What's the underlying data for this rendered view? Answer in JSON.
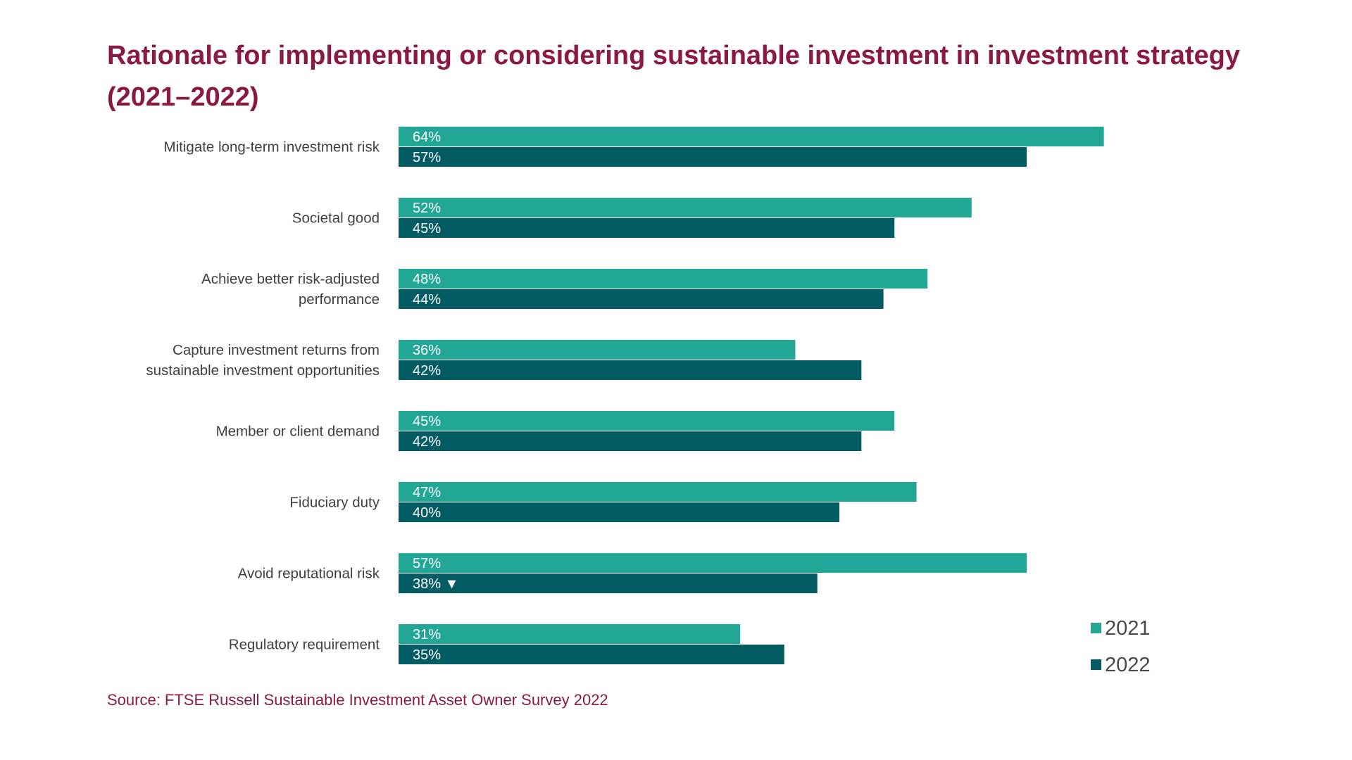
{
  "title": "Rationale for implementing or considering sustainable investment in investment strategy (2021–2022)",
  "source": "Source: FTSE Russell Sustainable Investment Asset Owner Survey 2022",
  "colors": {
    "title": "#8a1a44",
    "series_2021": "#22a695",
    "series_2022": "#035c64",
    "category_text": "#404040",
    "legend_text": "#4a4a4a",
    "bar_label": "#ffffff"
  },
  "chart_data": {
    "type": "bar",
    "orientation": "horizontal",
    "title": "Rationale for implementing or considering sustainable investment in investment strategy (2021–2022)",
    "categories": [
      [
        "Mitigate long-term investment risk"
      ],
      [
        "Societal good"
      ],
      [
        "Achieve better risk-adjusted",
        "performance"
      ],
      [
        "Capture investment returns from",
        "sustainable investment opportunities"
      ],
      [
        "Member or client demand"
      ],
      [
        "Fiduciary duty"
      ],
      [
        "Avoid reputational risk"
      ],
      [
        "Regulatory requirement"
      ]
    ],
    "series": [
      {
        "name": "2021",
        "color": "#22a695",
        "values": [
          64,
          52,
          48,
          36,
          45,
          47,
          57,
          31
        ],
        "labels": [
          "64%",
          "52%",
          "48%",
          "36%",
          "45%",
          "47%",
          "57%",
          "31%"
        ]
      },
      {
        "name": "2022",
        "color": "#035c64",
        "values": [
          57,
          45,
          44,
          42,
          42,
          40,
          38,
          35
        ],
        "labels": [
          "57%",
          "45%",
          "44%",
          "42%",
          "42%",
          "40%",
          "38% ▼",
          "35%"
        ]
      }
    ],
    "xlim": [
      0,
      100
    ],
    "grid": false,
    "legend": {
      "position": "bottom-right",
      "entries": [
        "2021",
        "2022"
      ]
    }
  }
}
